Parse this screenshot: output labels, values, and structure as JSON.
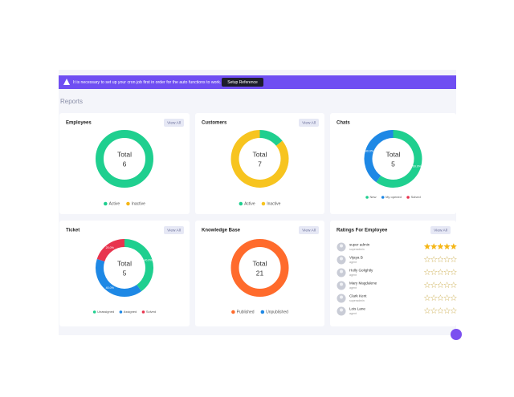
{
  "banner": {
    "message": "It is necessary to set up your cron job first in order for the auto functions to work.",
    "button": "Setup Reference"
  },
  "section_title": "Reports",
  "cards": [
    {
      "title": "Employees",
      "button": "View All",
      "total_label": "Total",
      "total": 6,
      "segments": [
        {
          "name": "Active",
          "color": "#1fcf8f",
          "value": 6
        },
        {
          "name": "Inactive",
          "color": "#f5b616",
          "value": 0
        }
      ]
    },
    {
      "title": "Customers",
      "button": "View All",
      "total_label": "Total",
      "total": 7,
      "segments": [
        {
          "name": "Active",
          "color": "#1fcf8f",
          "value": 1
        },
        {
          "name": "Inactive",
          "color": "#f7c41f",
          "value": 6
        }
      ]
    },
    {
      "title": "Chats",
      "total_label": "Total",
      "total": 5,
      "segments": [
        {
          "name": "New",
          "color": "#1fcf8f",
          "value": 3,
          "label": "60.0%"
        },
        {
          "name": "My opened",
          "color": "#1e88e5",
          "value": 2,
          "label": "40.0%"
        },
        {
          "name": "Solved",
          "color": "#e8344e",
          "value": 0
        }
      ]
    },
    {
      "title": "Ticket",
      "button": "View All",
      "total_label": "Total",
      "total": 5,
      "segments": [
        {
          "name": "Unassigned",
          "color": "#1fcf8f",
          "value": 2,
          "label": "40.0%"
        },
        {
          "name": "Assigned",
          "color": "#1e88e5",
          "value": 2,
          "label": "40.0%"
        },
        {
          "name": "Solved",
          "color": "#e8344e",
          "value": 1,
          "label": "20.0%"
        }
      ]
    },
    {
      "title": "Knowledge Base",
      "button": "View All",
      "total_label": "Total",
      "total": 21,
      "segments": [
        {
          "name": "Published",
          "color": "#ff6b2c",
          "value": 21
        },
        {
          "name": "Unpublished",
          "color": "#1e88e5",
          "value": 0
        }
      ]
    }
  ],
  "ratings": {
    "title": "Ratings For Employee",
    "button": "View All",
    "employees": [
      {
        "name": "super admin",
        "role": "superadmin",
        "rating": 5
      },
      {
        "name": "Vijaya B",
        "role": "agent",
        "rating": 0
      },
      {
        "name": "Holly Golightly",
        "role": "agent",
        "rating": 0
      },
      {
        "name": "Mary Magdalene",
        "role": "agent",
        "rating": 0
      },
      {
        "name": "Clark Kent",
        "role": "superadmin",
        "rating": 0
      },
      {
        "name": "Lois Lane",
        "role": "agent",
        "rating": 0
      }
    ]
  }
}
